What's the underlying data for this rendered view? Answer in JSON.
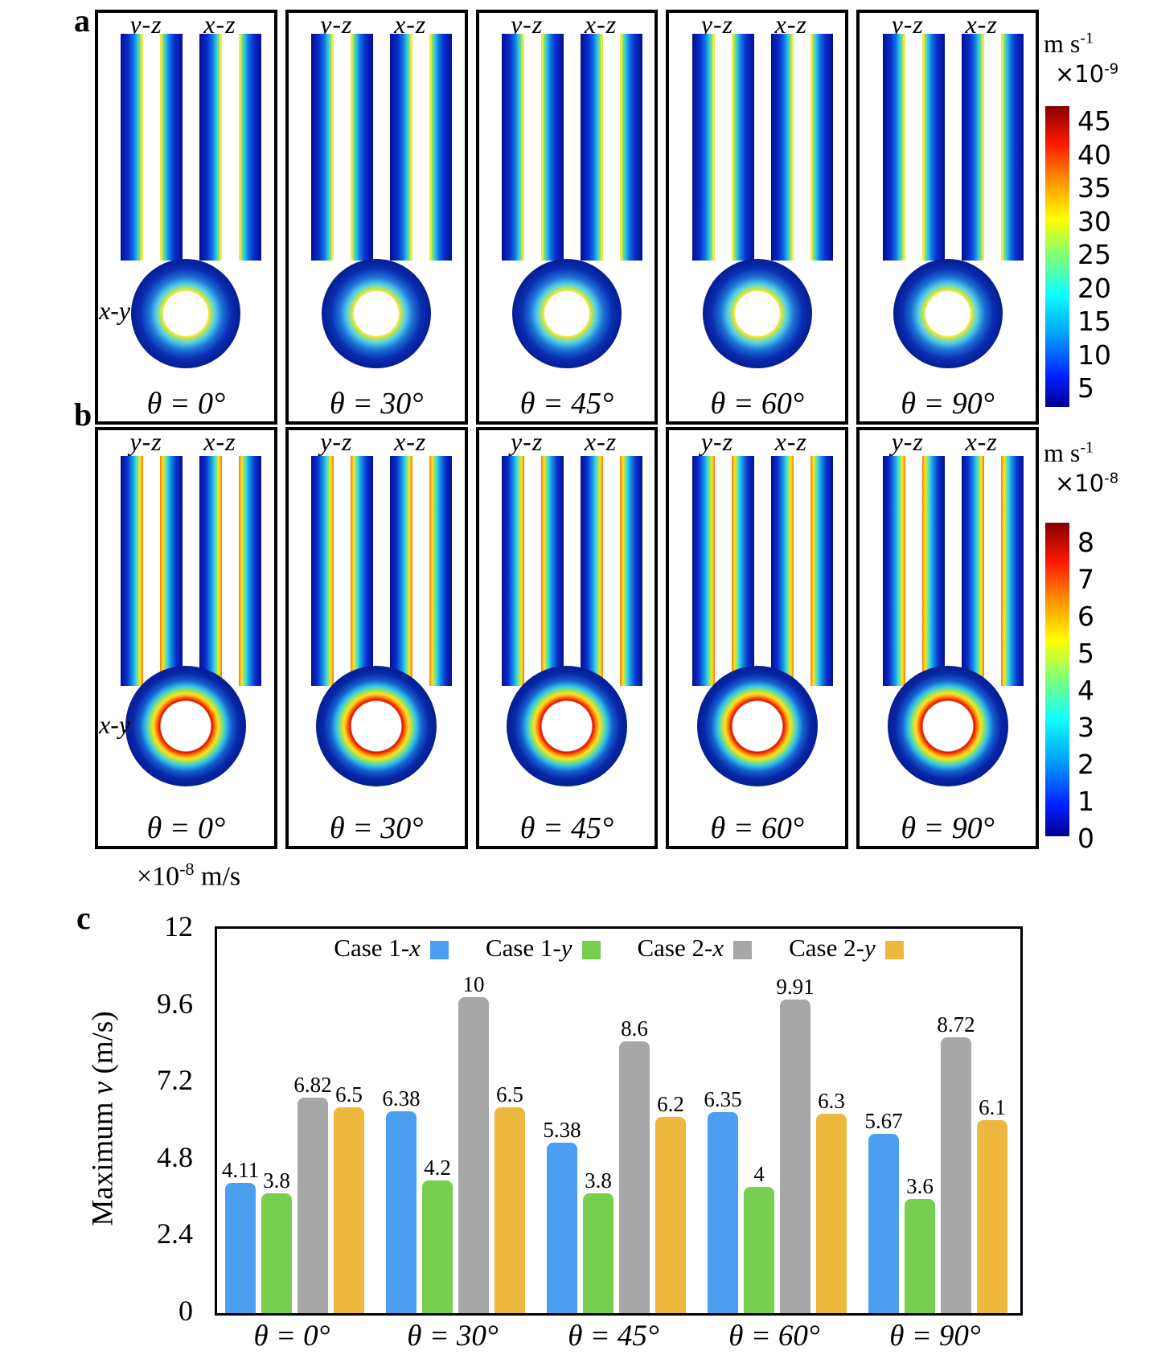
{
  "figure": {
    "panels": {
      "a": {
        "label": "a",
        "xy_label": "x-y",
        "subpanels": [
          {
            "plane_left": "y-z",
            "plane_right": "x-z",
            "angle": "θ = 0°"
          },
          {
            "plane_left": "y-z",
            "plane_right": "x-z",
            "angle": "θ = 30°"
          },
          {
            "plane_left": "y-z",
            "plane_right": "x-z",
            "angle": "θ = 45°"
          },
          {
            "plane_left": "y-z",
            "plane_right": "x-z",
            "angle": "θ = 60°"
          },
          {
            "plane_left": "y-z",
            "plane_right": "x-z",
            "angle": "θ = 90°"
          }
        ],
        "colorbar": {
          "unit": "m s",
          "unit_exp": "-1",
          "multiplier": "×10",
          "multiplier_exp": "-9",
          "ticks": [
            "45",
            "40",
            "35",
            "30",
            "25",
            "20",
            "15",
            "10",
            "5"
          ]
        }
      },
      "b": {
        "label": "b",
        "xy_label": "x-y",
        "subpanels": [
          {
            "plane_left": "y-z",
            "plane_right": "x-z",
            "angle": "θ = 0°"
          },
          {
            "plane_left": "y-z",
            "plane_right": "x-z",
            "angle": "θ = 30°"
          },
          {
            "plane_left": "y-z",
            "plane_right": "x-z",
            "angle": "θ = 45°"
          },
          {
            "plane_left": "y-z",
            "plane_right": "x-z",
            "angle": "θ = 60°"
          },
          {
            "plane_left": "y-z",
            "plane_right": "x-z",
            "angle": "θ = 90°"
          }
        ],
        "colorbar": {
          "unit": "m s",
          "unit_exp": "-1",
          "multiplier": "×10",
          "multiplier_exp": "-8",
          "ticks": [
            "8",
            "7",
            "6",
            "5",
            "4",
            "3",
            "2",
            "1",
            "0"
          ]
        }
      },
      "c": {
        "label": "c"
      }
    }
  },
  "chart_data": {
    "type": "bar",
    "title": "",
    "categories": [
      "θ = 0°",
      "θ = 30°",
      "θ = 45°",
      "θ = 60°",
      "θ = 90°"
    ],
    "series": [
      {
        "name": "Case 1-x",
        "name_prefix": "Case 1-",
        "name_italic": "x",
        "color": "#4C9FF0",
        "values": [
          4.11,
          6.38,
          5.38,
          6.35,
          5.67
        ]
      },
      {
        "name": "Case 1-y",
        "name_prefix": "Case 1-",
        "name_italic": "y",
        "color": "#77CE4F",
        "values": [
          3.8,
          4.2,
          3.8,
          4,
          3.6
        ]
      },
      {
        "name": "Case 2-x",
        "name_prefix": "Case 2-",
        "name_italic": "x",
        "color": "#A7A7A7",
        "values": [
          6.82,
          10,
          8.6,
          9.91,
          8.72
        ]
      },
      {
        "name": "Case 2-y",
        "name_prefix": "Case 2-",
        "name_italic": "y",
        "color": "#EDB83D",
        "values": [
          6.5,
          6.5,
          6.2,
          6.3,
          6.1
        ]
      }
    ],
    "ylabel": "Maximum v (m/s)",
    "ylabel_parts": [
      "Maximum ",
      "v",
      " (m/s)"
    ],
    "y_scale": "×10",
    "y_scale_exp": "-8",
    "y_scale_unit": " m/s",
    "y_ticks": [
      "12",
      "9.6",
      "7.2",
      "4.8",
      "2.4",
      "0"
    ],
    "ylim": [
      0,
      12
    ],
    "grid": false,
    "legend_position": "top-inside"
  }
}
